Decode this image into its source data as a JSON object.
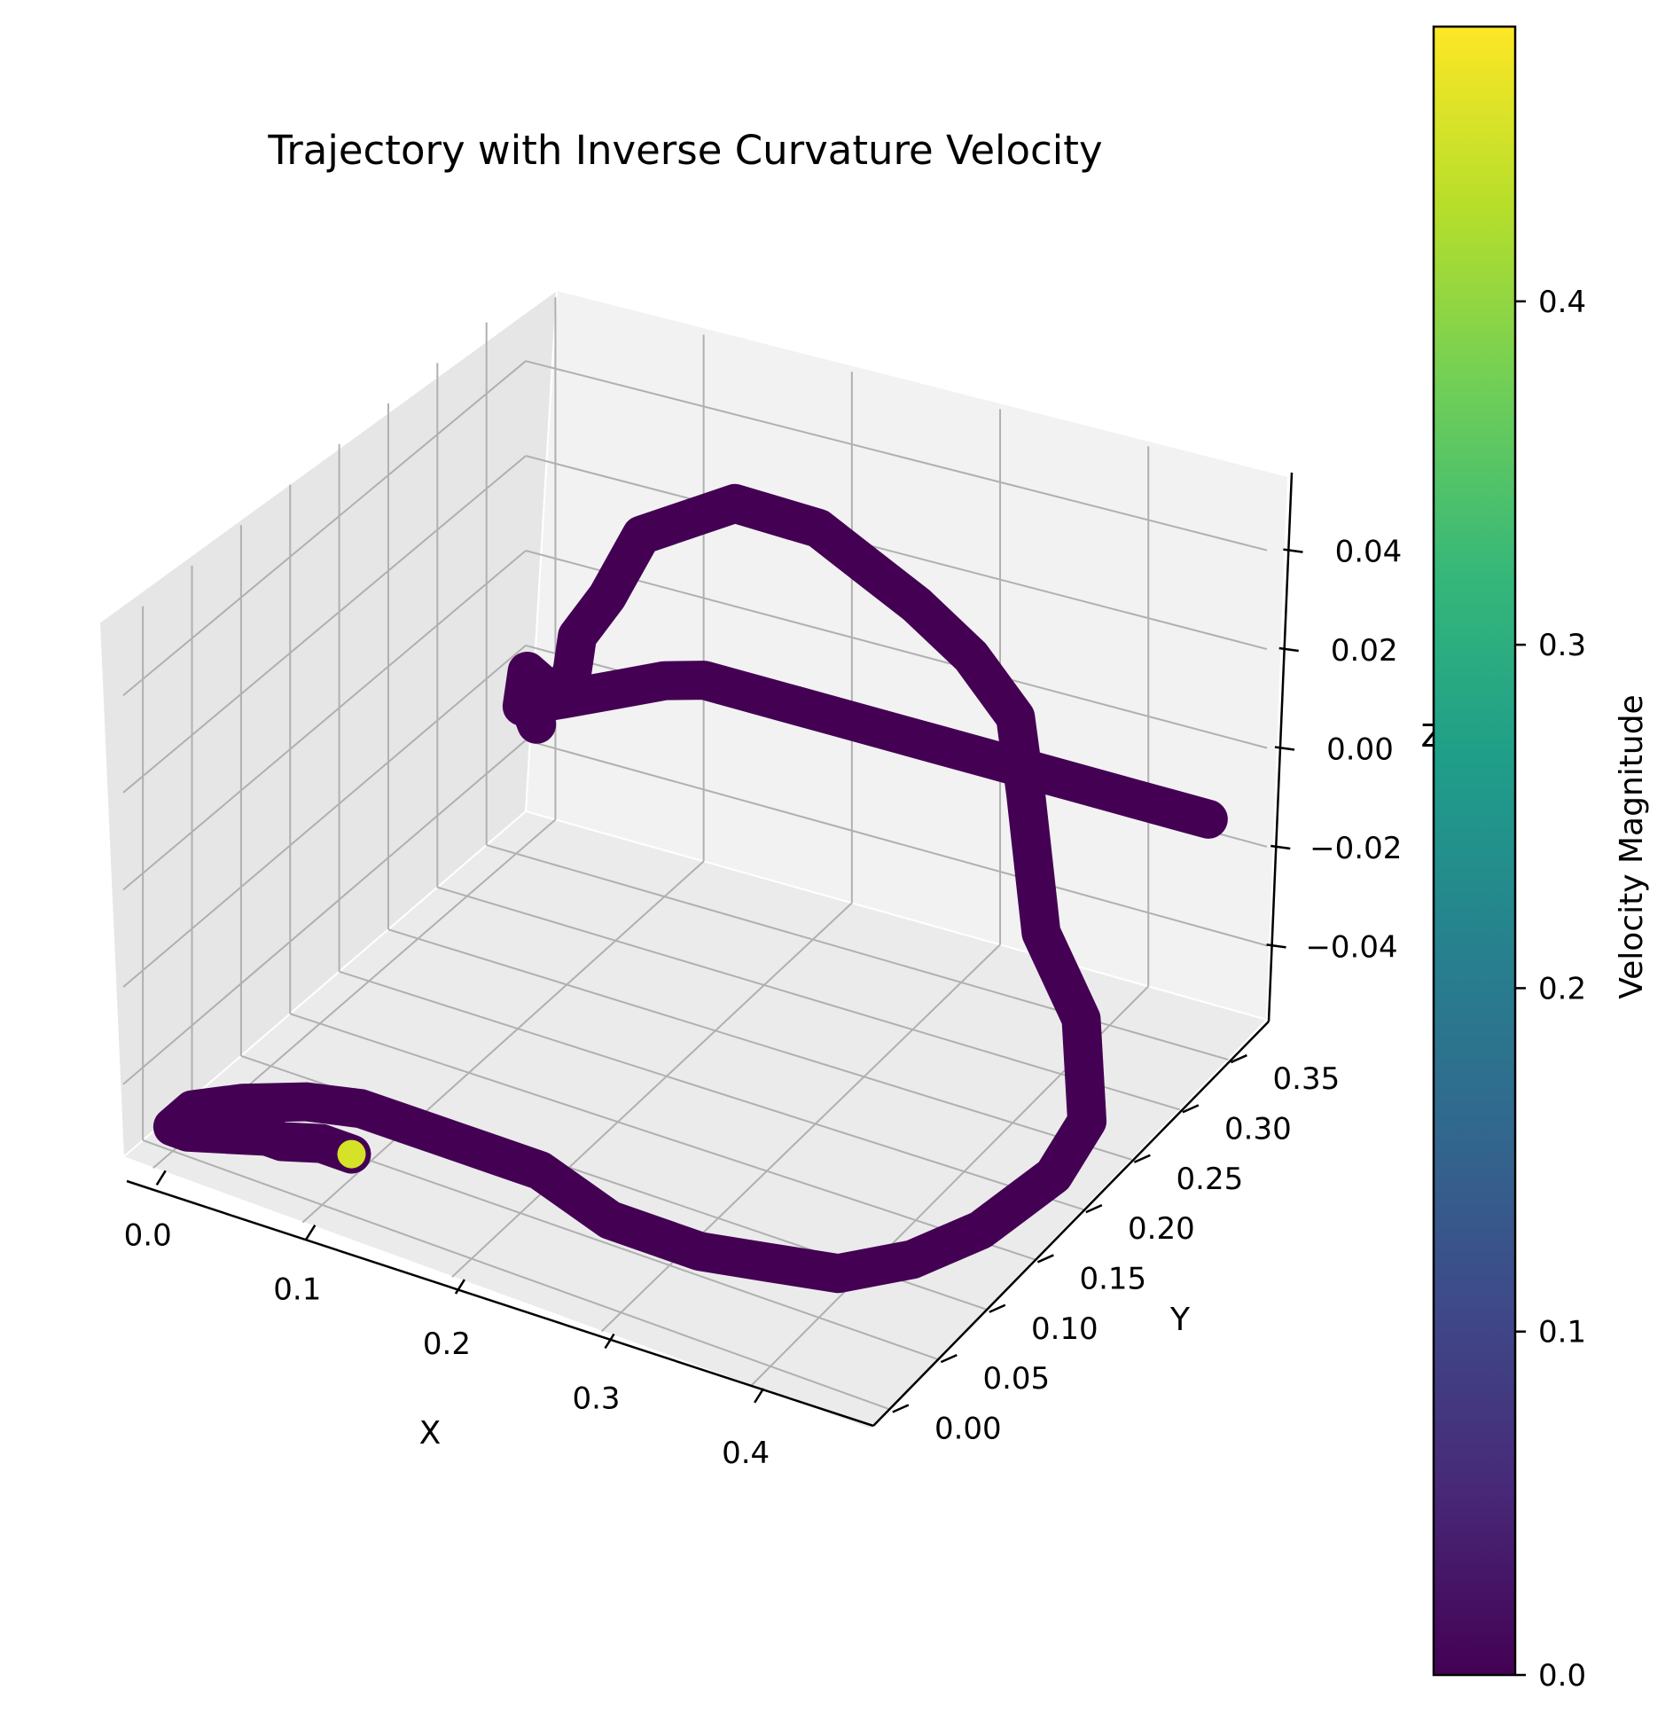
{
  "chart_data": {
    "type": "line",
    "projection": "3d",
    "title": "Trajectory with Inverse Curvature Velocity",
    "xlabel": "X",
    "ylabel": "Y",
    "zlabel": "Z",
    "xlim": [
      -0.02,
      0.48
    ],
    "ylim": [
      -0.02,
      0.39
    ],
    "zlim": [
      -0.055,
      0.055
    ],
    "x_ticks": [
      "0.0",
      "0.1",
      "0.2",
      "0.3",
      "0.4"
    ],
    "y_ticks": [
      "0.00",
      "0.05",
      "0.10",
      "0.15",
      "0.20",
      "0.25",
      "0.30",
      "0.35"
    ],
    "z_ticks": [
      "−0.04",
      "−0.02",
      "0.00",
      "0.02",
      "0.04"
    ],
    "grid": true,
    "colorbar": {
      "label": "Velocity Magnitude",
      "colormap": "viridis",
      "range": [
        0,
        0.48
      ],
      "ticks": [
        "0.0",
        "0.1",
        "0.2",
        "0.3",
        "0.4"
      ]
    },
    "colormap_stops": [
      "#440154",
      "#482878",
      "#3e4989",
      "#31688e",
      "#26828e",
      "#1f9e89",
      "#35b779",
      "#6ece58",
      "#b5de2b",
      "#fde725"
    ],
    "series": [
      {
        "x": [
          0.1,
          0.08,
          0.06,
          0.05,
          0.03,
          0.01,
          0.0,
          0.0,
          0.02,
          0.05,
          0.08,
          0.11,
          0.14,
          0.17,
          0.2,
          0.23,
          0.26,
          0.29,
          0.32,
          0.36,
          0.4,
          0.43,
          0.45,
          0.46,
          0.45,
          0.42,
          0.38,
          0.35,
          0.33,
          0.3,
          0.27,
          0.25,
          0.23,
          0.2,
          0.17,
          0.16,
          0.14,
          0.13,
          0.11,
          0.1,
          0.08,
          0.07,
          0.06,
          0.06,
          0.05,
          0.05,
          0.06,
          0.07,
          0.08,
          0.1,
          0.12,
          0.15,
          0.18,
          0.21,
          0.24,
          0.28,
          0.31,
          0.34,
          0.37,
          0.4,
          0.42,
          0.44,
          0.46
        ],
        "y": [
          0.03,
          0.03,
          0.02,
          0.02,
          0.01,
          0.0,
          0.0,
          0.02,
          0.04,
          0.06,
          0.07,
          0.07,
          0.07,
          0.07,
          0.07,
          0.06,
          0.05,
          0.05,
          0.05,
          0.06,
          0.07,
          0.1,
          0.14,
          0.2,
          0.25,
          0.29,
          0.31,
          0.34,
          0.36,
          0.36,
          0.35,
          0.33,
          0.31,
          0.27,
          0.22,
          0.2,
          0.2,
          0.21,
          0.23,
          0.23,
          0.24,
          0.25,
          0.27,
          0.28,
          0.29,
          0.3,
          0.31,
          0.32,
          0.33,
          0.35,
          0.36,
          0.36,
          0.36,
          0.36,
          0.36,
          0.36,
          0.36,
          0.36,
          0.36,
          0.36,
          0.36,
          0.36,
          0.36
        ],
        "z": [
          -0.05,
          -0.05,
          -0.05,
          -0.05,
          -0.05,
          -0.05,
          -0.05,
          -0.05,
          -0.05,
          -0.05,
          -0.05,
          -0.05,
          -0.05,
          -0.05,
          -0.05,
          -0.05,
          -0.05,
          -0.05,
          -0.05,
          -0.05,
          -0.05,
          -0.05,
          -0.05,
          -0.05,
          -0.05,
          -0.04,
          -0.03,
          -0.01,
          0.0,
          0.01,
          0.02,
          0.03,
          0.04,
          0.05,
          0.05,
          0.04,
          0.03,
          0.02,
          0.01,
          0.01,
          0.01,
          0.0,
          0.0,
          -0.01,
          -0.01,
          -0.01,
          -0.01,
          -0.01,
          -0.01,
          -0.01,
          -0.01,
          -0.01,
          -0.01,
          -0.01,
          -0.01,
          -0.01,
          -0.01,
          -0.01,
          -0.01,
          -0.01,
          -0.01,
          -0.01,
          -0.01
        ],
        "velocity": [
          0.45,
          0.0,
          0.0,
          0.0,
          0.0,
          0.0,
          0.0,
          0.0,
          0.0,
          0.0,
          0.0,
          0.0,
          0.0,
          0.0,
          0.0,
          0.0,
          0.0,
          0.0,
          0.0,
          0.0,
          0.0,
          0.0,
          0.0,
          0.0,
          0.0,
          0.0,
          0.0,
          0.0,
          0.0,
          0.0,
          0.0,
          0.0,
          0.0,
          0.0,
          0.0,
          0.0,
          0.0,
          0.0,
          0.0,
          0.0,
          0.0,
          0.0,
          0.0,
          0.0,
          0.0,
          0.0,
          0.0,
          0.0,
          0.0,
          0.0,
          0.0,
          0.0,
          0.0,
          0.0,
          0.0,
          0.0,
          0.0,
          0.0,
          0.0,
          0.0,
          0.0,
          0.0,
          0.0
        ]
      }
    ]
  }
}
